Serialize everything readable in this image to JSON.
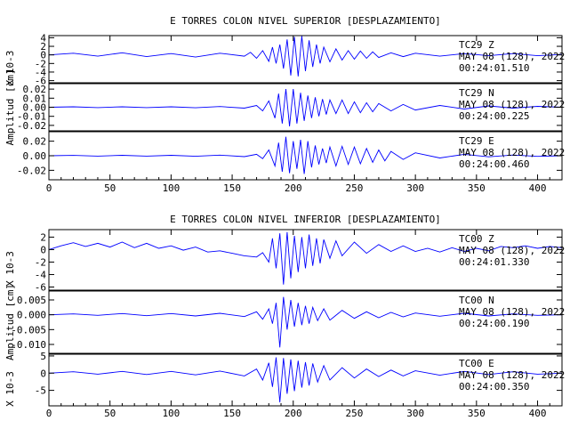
{
  "colors": {
    "trace": "#0000ff",
    "axis": "#000000",
    "background": "#ffffff"
  },
  "chart_data": [
    {
      "type": "line",
      "title": "E TORRES COLON NIVEL SUPERIOR [DESPLAZAMIENTO]",
      "xlabel": "",
      "ylabel": "Amplitud [cm]",
      "xlim": [
        0,
        420
      ],
      "x_ticks": [
        "0",
        "50",
        "100",
        "150",
        "200",
        "250",
        "300",
        "350",
        "400"
      ],
      "grid": false,
      "panels": [
        {
          "station": "TC29",
          "component": "Z",
          "date": "MAY 08 (128), 2022",
          "time": "00:24:01.510",
          "scale_label": "X 10-3",
          "ylim": [
            -6.5,
            4.5
          ],
          "y_ticks": [
            "4",
            "2",
            "0",
            "-2",
            "-4",
            "-6"
          ],
          "y_tick_values": [
            4,
            2,
            0,
            -2,
            -4,
            -6
          ],
          "x": [
            0,
            20,
            40,
            60,
            80,
            100,
            120,
            140,
            160,
            165,
            170,
            175,
            180,
            183,
            186,
            189,
            192,
            195,
            198,
            201,
            204,
            207,
            210,
            213,
            216,
            219,
            222,
            225,
            230,
            235,
            240,
            245,
            250,
            255,
            260,
            265,
            270,
            280,
            290,
            300,
            320,
            340,
            360,
            380,
            400,
            420
          ],
          "y": [
            0,
            0.4,
            -0.3,
            0.5,
            -0.4,
            0.3,
            -0.5,
            0.4,
            -0.3,
            0.6,
            -0.8,
            1.0,
            -1.5,
            1.8,
            -2.0,
            2.4,
            -3.2,
            3.6,
            -4.8,
            4.2,
            -5.0,
            4.4,
            -3.8,
            3.4,
            -2.8,
            2.4,
            -2.0,
            1.8,
            -1.6,
            1.4,
            -1.2,
            1.0,
            -1.0,
            0.9,
            -0.8,
            0.7,
            -0.6,
            0.5,
            -0.4,
            0.4,
            -0.3,
            0.3,
            -0.2,
            0.3,
            -0.2,
            0.1
          ]
        },
        {
          "station": "TC29",
          "component": "N",
          "date": "MAY 08 (128), 2022",
          "time": "00:24:00.225",
          "scale_label": "",
          "ylim": [
            -0.026,
            0.026
          ],
          "y_ticks": [
            "0.02",
            "0.01",
            "0.00",
            "-0.01",
            "-0.02"
          ],
          "y_tick_values": [
            0.02,
            0.01,
            0,
            -0.01,
            -0.02
          ],
          "x": [
            0,
            20,
            40,
            60,
            80,
            100,
            120,
            140,
            160,
            170,
            175,
            180,
            185,
            188,
            191,
            194,
            197,
            200,
            203,
            206,
            209,
            212,
            215,
            218,
            221,
            224,
            227,
            230,
            235,
            240,
            245,
            250,
            255,
            260,
            265,
            270,
            280,
            290,
            300,
            320,
            340,
            360,
            380,
            400,
            420
          ],
          "y": [
            0,
            0.0005,
            -0.0004,
            0.0005,
            -0.0004,
            0.0005,
            -0.0006,
            0.0008,
            -0.001,
            0.002,
            -0.004,
            0.007,
            -0.012,
            0.015,
            -0.018,
            0.02,
            -0.021,
            0.02,
            -0.018,
            0.016,
            -0.015,
            0.013,
            -0.012,
            0.011,
            -0.01,
            0.009,
            -0.008,
            0.008,
            -0.007,
            0.008,
            -0.007,
            0.006,
            -0.006,
            0.005,
            -0.005,
            0.004,
            -0.004,
            0.003,
            -0.003,
            0.002,
            -0.002,
            0.0015,
            -0.001,
            0.001,
            0
          ]
        },
        {
          "station": "TC29",
          "component": "E",
          "date": "MAY 08 (128), 2022",
          "time": "00:24:00.460",
          "scale_label": "",
          "ylim": [
            -0.033,
            0.033
          ],
          "y_ticks": [
            "0.02",
            "0.00",
            "-0.02"
          ],
          "y_tick_values": [
            0.02,
            0,
            -0.02
          ],
          "x": [
            0,
            20,
            40,
            60,
            80,
            100,
            120,
            140,
            160,
            170,
            175,
            180,
            185,
            188,
            191,
            194,
            197,
            200,
            203,
            206,
            209,
            212,
            215,
            218,
            221,
            224,
            227,
            230,
            235,
            240,
            245,
            250,
            255,
            260,
            265,
            270,
            275,
            280,
            290,
            300,
            320,
            340,
            360,
            380,
            400,
            420
          ],
          "y": [
            0,
            0.0005,
            -0.0005,
            0.0006,
            -0.0005,
            0.0006,
            -0.0007,
            0.0009,
            -0.0012,
            0.002,
            -0.004,
            0.008,
            -0.014,
            0.018,
            -0.022,
            0.026,
            -0.024,
            0.02,
            -0.018,
            0.022,
            -0.025,
            0.02,
            -0.016,
            0.014,
            -0.012,
            0.01,
            -0.01,
            0.012,
            -0.014,
            0.013,
            -0.012,
            0.012,
            -0.011,
            0.01,
            -0.009,
            0.008,
            -0.007,
            0.006,
            -0.005,
            0.004,
            -0.003,
            0.002,
            -0.0015,
            0.001,
            -0.0008,
            0
          ]
        }
      ]
    },
    {
      "type": "line",
      "title": "E TORRES COLON NIVEL INFERIOR [DESPLAZAMIENTO]",
      "xlabel": "",
      "ylabel": "Amplitud [cm]",
      "xlim": [
        0,
        420
      ],
      "x_ticks": [
        "0",
        "50",
        "100",
        "150",
        "200",
        "250",
        "300",
        "350",
        "400"
      ],
      "grid": false,
      "panels": [
        {
          "station": "TC00",
          "component": "Z",
          "date": "MAY 08 (128), 2022",
          "time": "00:24:01.330",
          "scale_label": "X 10-3",
          "ylim": [
            -6.5,
            3.2
          ],
          "y_ticks": [
            "2",
            "0",
            "-2",
            "-4",
            "-6"
          ],
          "y_tick_values": [
            2,
            0,
            -2,
            -4,
            -6
          ],
          "x": [
            0,
            10,
            20,
            30,
            40,
            50,
            60,
            70,
            80,
            90,
            100,
            110,
            120,
            130,
            140,
            150,
            160,
            170,
            175,
            180,
            183,
            186,
            189,
            192,
            195,
            198,
            201,
            204,
            207,
            210,
            213,
            216,
            219,
            222,
            225,
            230,
            235,
            240,
            250,
            260,
            270,
            280,
            290,
            300,
            310,
            320,
            330,
            340,
            350,
            360,
            370,
            380,
            390,
            400,
            410,
            420
          ],
          "y": [
            0,
            0.6,
            1.1,
            0.5,
            1.0,
            0.4,
            1.2,
            0.3,
            1.0,
            0.2,
            0.6,
            -0.1,
            0.4,
            -0.4,
            -0.2,
            -0.6,
            -1.0,
            -1.2,
            -0.5,
            -2.0,
            1.8,
            -3.0,
            2.6,
            -5.6,
            2.8,
            -4.6,
            2.2,
            -3.6,
            2.0,
            -3.0,
            2.4,
            -2.6,
            1.8,
            -2.2,
            1.6,
            -1.4,
            1.4,
            -1.0,
            1.2,
            -0.6,
            0.8,
            -0.3,
            0.6,
            -0.3,
            0.2,
            -0.4,
            0.3,
            -0.3,
            0.2,
            -0.2,
            0.5,
            0.3,
            0.6,
            0.2,
            0.5,
            0.3
          ]
        },
        {
          "station": "TC00",
          "component": "N",
          "date": "MAY 08 (128), 2022",
          "time": "00:24:00.190",
          "scale_label": "",
          "ylim": [
            -0.013,
            0.008
          ],
          "y_ticks": [
            "0.005",
            "0.000",
            "-0.005",
            "-0.010"
          ],
          "y_tick_values": [
            0.005,
            0,
            -0.005,
            -0.01
          ],
          "x": [
            0,
            20,
            40,
            60,
            80,
            100,
            120,
            140,
            160,
            170,
            175,
            180,
            183,
            186,
            189,
            192,
            195,
            198,
            201,
            204,
            207,
            210,
            213,
            216,
            220,
            225,
            230,
            240,
            250,
            260,
            270,
            280,
            290,
            300,
            320,
            340,
            360,
            380,
            400,
            420
          ],
          "y": [
            0,
            0.0003,
            -0.0002,
            0.0004,
            -0.0003,
            0.0004,
            -0.0004,
            0.0005,
            -0.0006,
            0.001,
            -0.0015,
            0.002,
            -0.003,
            0.004,
            -0.011,
            0.006,
            -0.005,
            0.005,
            -0.004,
            0.004,
            -0.0035,
            0.003,
            -0.003,
            0.0025,
            -0.002,
            0.002,
            -0.0018,
            0.0015,
            -0.0012,
            0.001,
            -0.001,
            0.0008,
            -0.0007,
            0.0006,
            -0.0005,
            0.0005,
            -0.0004,
            0.0003,
            -0.0002,
            0
          ]
        },
        {
          "station": "TC00",
          "component": "E",
          "date": "MAY 08 (128), 2022",
          "time": "00:24:00.350",
          "scale_label": "X 10-3",
          "ylim": [
            -9.5,
            5.5
          ],
          "y_ticks": [
            "5",
            "0",
            "-5"
          ],
          "y_tick_values": [
            5,
            0,
            -5
          ],
          "x": [
            0,
            20,
            40,
            60,
            80,
            100,
            120,
            140,
            160,
            170,
            175,
            180,
            183,
            186,
            189,
            192,
            195,
            198,
            201,
            204,
            207,
            210,
            213,
            216,
            220,
            225,
            230,
            240,
            250,
            260,
            270,
            280,
            290,
            300,
            320,
            340,
            360,
            380,
            400,
            420
          ],
          "y": [
            0,
            0.4,
            -0.3,
            0.5,
            -0.4,
            0.5,
            -0.5,
            0.6,
            -0.8,
            1.2,
            -2.0,
            3.0,
            -4.0,
            4.6,
            -8.5,
            4.4,
            -6.0,
            4.0,
            -5.2,
            3.6,
            -4.2,
            3.2,
            -3.6,
            2.8,
            -2.6,
            2.2,
            -2.0,
            1.6,
            -1.4,
            1.2,
            -1.0,
            0.9,
            -0.8,
            0.7,
            -0.6,
            0.5,
            -0.4,
            0.4,
            -0.3,
            0
          ]
        }
      ]
    }
  ]
}
